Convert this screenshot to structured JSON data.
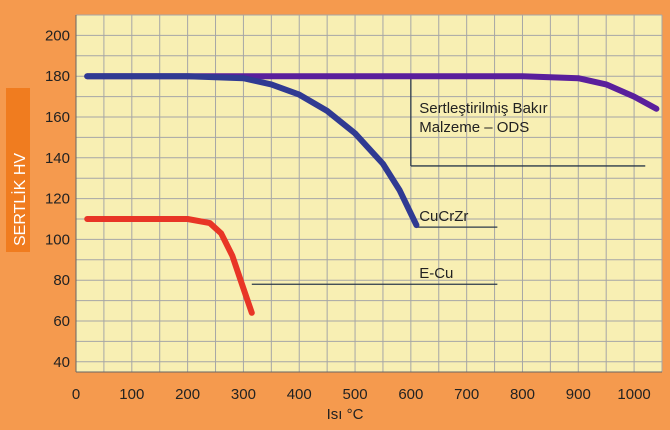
{
  "chart_data": {
    "type": "line",
    "title": "",
    "xlabel": "Isı °C",
    "ylabel": "SERTLİK HV",
    "xlim": [
      0,
      1050
    ],
    "ylim": [
      35,
      210
    ],
    "x_ticks": [
      0,
      100,
      200,
      300,
      400,
      500,
      600,
      700,
      800,
      900,
      1000
    ],
    "y_ticks": [
      40,
      60,
      80,
      100,
      120,
      140,
      160,
      180,
      200
    ],
    "grid": true,
    "colors": {
      "background": "#f59a4e",
      "plot_area": "#f8efb3",
      "grid": "#a6a6a6",
      "ylabel_box": "#f07c1f"
    },
    "series": [
      {
        "color": "#5a1f9c",
        "x": [
          20,
          100,
          200,
          300,
          400,
          500,
          600,
          700,
          800,
          900,
          950,
          1000,
          1040
        ],
        "y": [
          180,
          180,
          180,
          180,
          180,
          180,
          180,
          180,
          180,
          179,
          176,
          170,
          164
        ]
      },
      {
        "color": "#303a92",
        "x": [
          20,
          100,
          200,
          300,
          350,
          400,
          450,
          500,
          550,
          580,
          610
        ],
        "y": [
          180,
          180,
          180,
          179,
          176,
          171,
          163,
          152,
          137,
          124,
          107
        ]
      },
      {
        "color": "#e83526",
        "x": [
          20,
          100,
          200,
          240,
          260,
          280,
          300,
          315
        ],
        "y": [
          110,
          110,
          110,
          108,
          103,
          92,
          76,
          64
        ]
      }
    ],
    "annotations": [
      {
        "lines": [
          "Sertleştirilmiş Bakır",
          "Malzeme – ODS"
        ],
        "x": 615,
        "y": 162
      },
      {
        "lines": [
          "CuCrZr"
        ],
        "x": 615,
        "y": 109
      },
      {
        "lines": [
          "E-Cu"
        ],
        "x": 615,
        "y": 81
      }
    ]
  }
}
